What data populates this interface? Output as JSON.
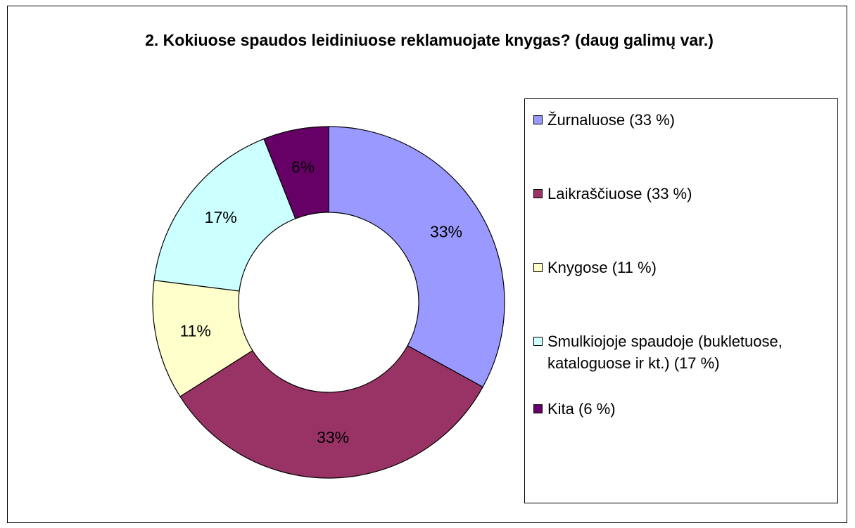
{
  "chart_data": {
    "type": "donut",
    "title": "2. Kokiuose spaudos leidiniuose reklamuojate knygas? (daug galimų var.)",
    "categories": [
      "Žurnaluose (33 %)",
      "Laikraščiuose (33 %)",
      "Knygose (11 %)",
      "Smulkiojoje spaudoje (bukletuose, kataloguose ir kt.) (17 %)",
      "Kita (6 %)"
    ],
    "values": [
      33,
      33,
      11,
      17,
      6
    ],
    "value_labels": [
      "33%",
      "33%",
      "11%",
      "17%",
      "6%"
    ],
    "colors": [
      "#9999ff",
      "#993366",
      "#ffffcc",
      "#ccffff",
      "#660066"
    ],
    "legend": "right"
  }
}
